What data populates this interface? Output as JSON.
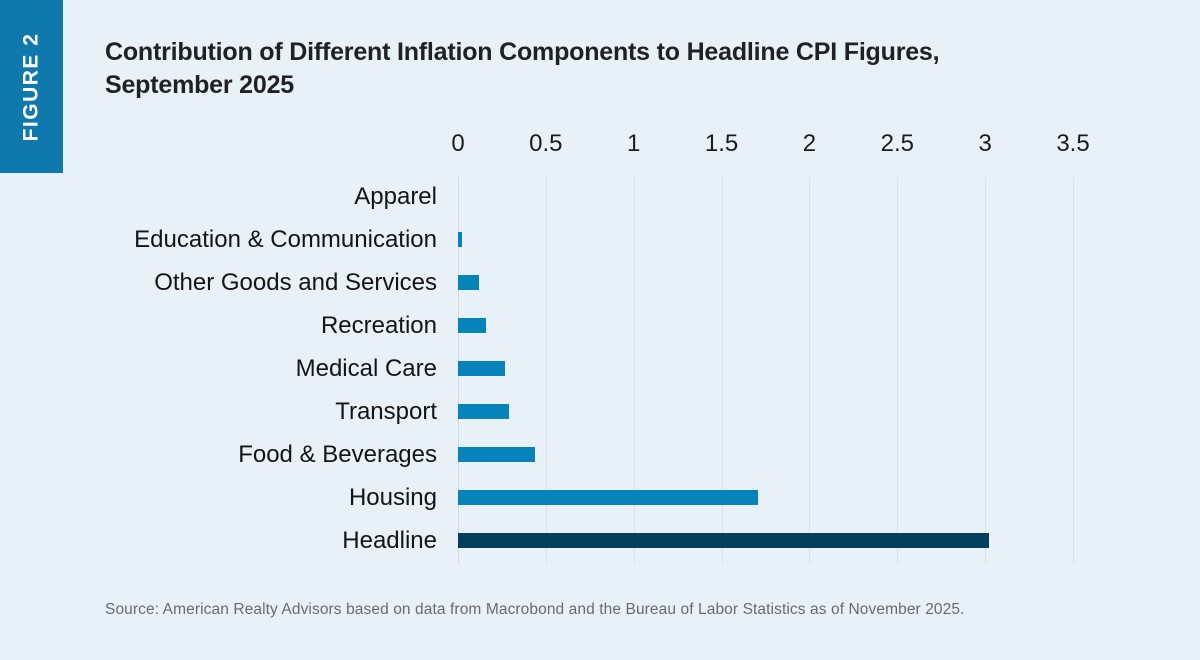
{
  "figure_label": "FIGURE 2",
  "title": {
    "line1": "Contribution of Different Inflation Components to Headline CPI Figures,",
    "line2": "September 2025"
  },
  "source": {
    "text": "Source: American Realty Advisors based on data from Macrobond and the Bureau of Labor Statistics as of November 2025."
  },
  "colors": {
    "background": "#e8f1f8",
    "badge_blue": "#0f79ae",
    "bar_blue": "#0583ba",
    "headline_navy": "#04405c",
    "gridline": "#d9e2ea",
    "title_text": "#202124",
    "source_text": "#686b6e"
  },
  "chart_data": {
    "type": "bar",
    "orientation": "horizontal",
    "title": "Contribution of Different Inflation Components to Headline CPI Figures, September 2025",
    "xlabel": "",
    "ylabel": "",
    "axis_position": "top",
    "grid": true,
    "xlim": [
      0,
      3.5
    ],
    "ticks": [
      0,
      0.5,
      1,
      1.5,
      2,
      2.5,
      3,
      3.5
    ],
    "tick_labels": [
      "0",
      "0.5",
      "1",
      "1.5",
      "2",
      "2.5",
      "3",
      "3.5"
    ],
    "categories": [
      "Apparel",
      "Education & Communication",
      "Other Goods and Services",
      "Recreation",
      "Medical Care",
      "Transport",
      "Food & Beverages",
      "Housing",
      "Headline"
    ],
    "values": [
      0.0,
      0.02,
      0.12,
      0.16,
      0.27,
      0.29,
      0.44,
      1.71,
      3.02
    ],
    "bar_color": "#0583ba",
    "highlight_category": "Headline",
    "highlight_color": "#04405c",
    "legend": null
  }
}
